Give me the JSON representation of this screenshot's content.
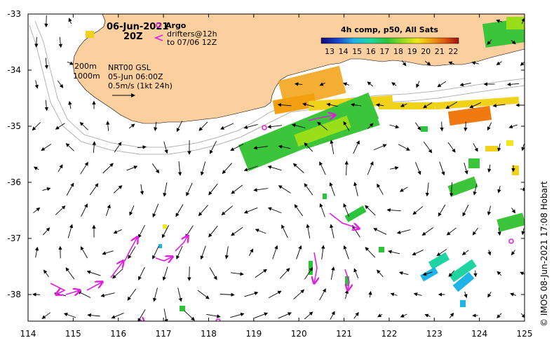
{
  "map": {
    "date_title": "06-Jun-2021",
    "time_title": "20Z",
    "legend": {
      "argo_label": "Argo",
      "drifters_line1": "drifters@12h",
      "drifters_line2": "to 07/06 12Z",
      "argo_color": "#e020e0",
      "drifter_color": "#e020e0"
    },
    "bathymetry": {
      "contour1": "200m",
      "contour2": "1000m"
    },
    "current_info": {
      "source": "NRT00 GSL",
      "time": "05-Jun 06:00Z",
      "scale": "0.5m/s (1kt 24h)"
    },
    "colorbar": {
      "title": "4h comp, p50, All Sats",
      "ticks": [
        "13",
        "14",
        "15",
        "16",
        "17",
        "18",
        "19",
        "20",
        "21",
        "22"
      ]
    },
    "credit": "© IMOS 08-Jun-2021 17:08 Hobart",
    "x_ticks": [
      "114",
      "115",
      "116",
      "117",
      "118",
      "119",
      "120",
      "121",
      "122",
      "123",
      "124",
      "125"
    ],
    "y_ticks": [
      "-33",
      "-34",
      "-35",
      "-36",
      "-37",
      "-38"
    ],
    "colors": {
      "land": "#fbcf9e",
      "shelf_contour": "#b4b4b4"
    }
  }
}
